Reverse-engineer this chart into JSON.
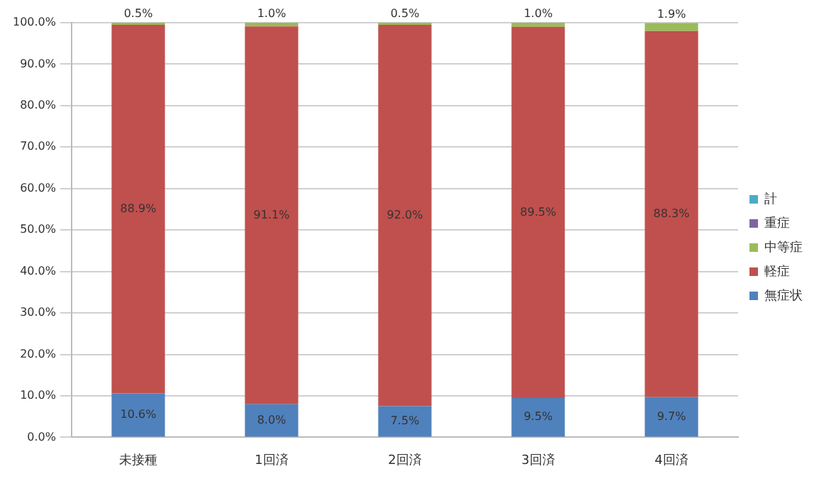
{
  "chart_data": {
    "type": "bar",
    "stacked": true,
    "categories": [
      "未接種",
      "1回済",
      "2回済",
      "3回済",
      "4回済"
    ],
    "series": [
      {
        "name": "無症状",
        "color": "#4f81bd",
        "values": [
          10.6,
          8.0,
          7.5,
          9.5,
          9.7
        ],
        "value_labels": [
          "10.6%",
          "8.0%",
          "7.5%",
          "9.5%",
          "9.7%"
        ]
      },
      {
        "name": "軽症",
        "color": "#c0504d",
        "values": [
          88.9,
          91.1,
          92.0,
          89.5,
          88.3
        ],
        "value_labels": [
          "88.9%",
          "91.1%",
          "92.0%",
          "89.5%",
          "88.3%"
        ]
      },
      {
        "name": "中等症",
        "color": "#9bbb59",
        "values": [
          0.5,
          1.0,
          0.5,
          1.0,
          1.9
        ],
        "value_labels": [
          "0.5%",
          "1.0%",
          "0.5%",
          "1.0%",
          "1.9%"
        ]
      },
      {
        "name": "重症",
        "color": "#8064a2",
        "values": [
          0,
          0,
          0,
          0,
          0
        ]
      },
      {
        "name": "計",
        "color": "#4bacc6",
        "values": [
          0,
          0,
          0,
          0,
          0
        ]
      }
    ],
    "ylim": [
      0,
      100
    ],
    "yticks": [
      {
        "value": 0,
        "label": "0.0%"
      },
      {
        "value": 10,
        "label": "10.0%"
      },
      {
        "value": 20,
        "label": "20.0%"
      },
      {
        "value": 30,
        "label": "30.0%"
      },
      {
        "value": 40,
        "label": "40.0%"
      },
      {
        "value": 50,
        "label": "50.0%"
      },
      {
        "value": 60,
        "label": "60.0%"
      },
      {
        "value": 70,
        "label": "70.0%"
      },
      {
        "value": 80,
        "label": "80.0%"
      },
      {
        "value": 90,
        "label": "90.0%"
      },
      {
        "value": 100,
        "label": "100.0%"
      }
    ],
    "grid": "y",
    "legend": "right"
  }
}
